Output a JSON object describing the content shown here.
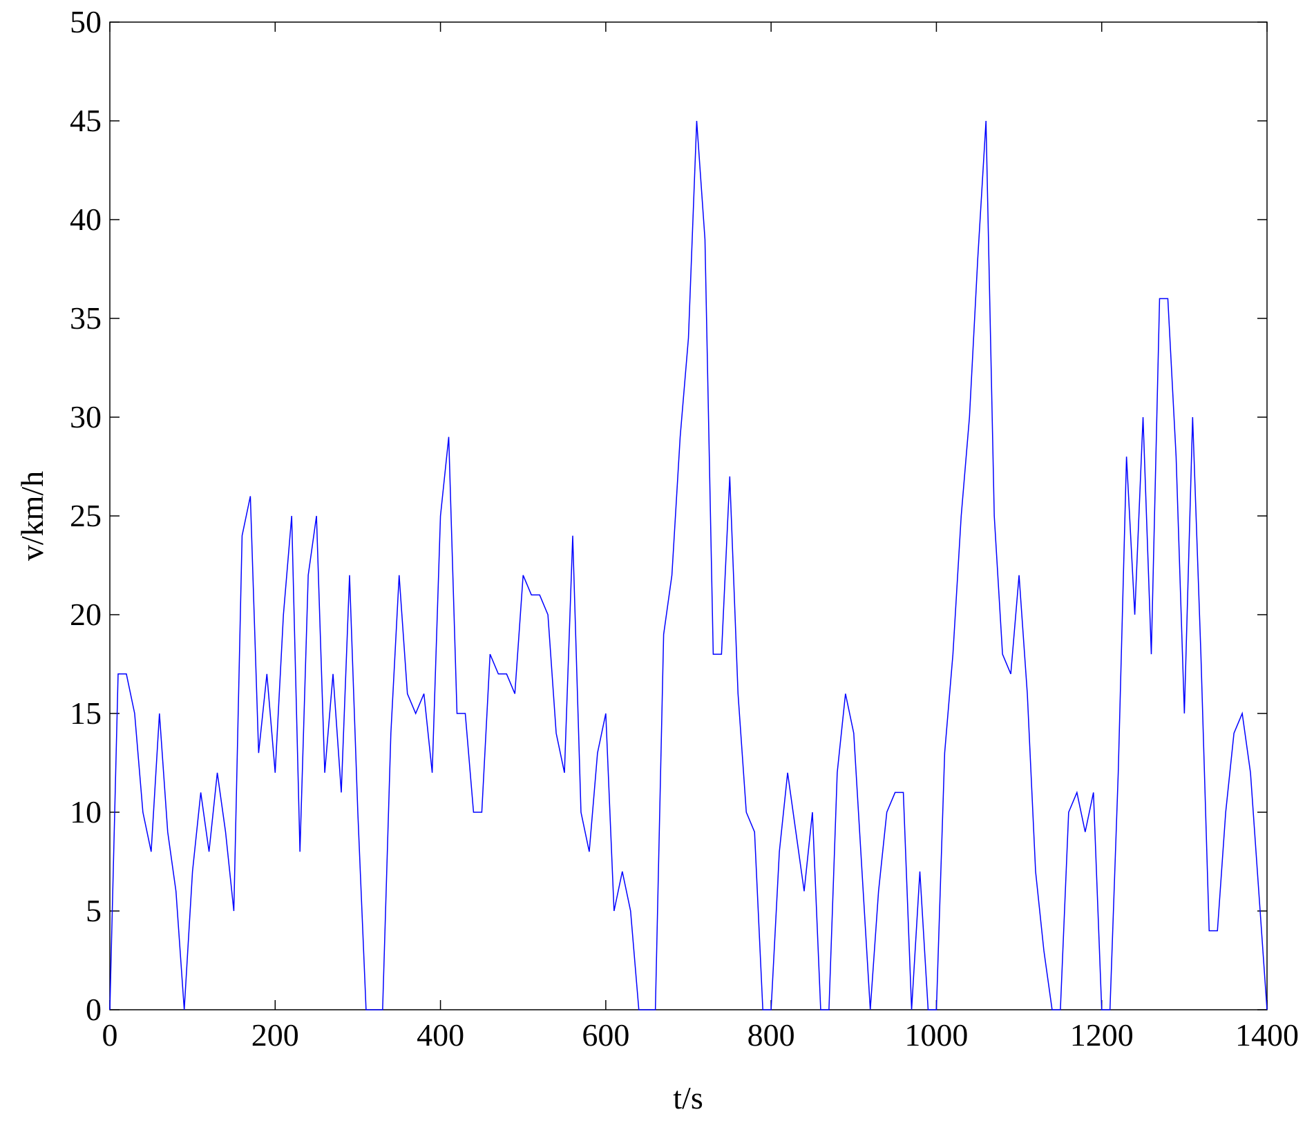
{
  "chart_data": {
    "type": "line",
    "xlabel": "t/s",
    "ylabel": "v/km/h",
    "x": [
      0,
      10,
      20,
      30,
      40,
      50,
      60,
      70,
      80,
      90,
      100,
      110,
      120,
      130,
      140,
      150,
      160,
      170,
      180,
      190,
      200,
      210,
      220,
      230,
      240,
      250,
      260,
      270,
      280,
      290,
      300,
      310,
      320,
      330,
      340,
      350,
      360,
      370,
      380,
      390,
      400,
      410,
      420,
      430,
      440,
      450,
      460,
      470,
      480,
      490,
      500,
      510,
      520,
      530,
      540,
      550,
      560,
      570,
      580,
      590,
      600,
      610,
      620,
      630,
      640,
      650,
      660,
      670,
      680,
      690,
      700,
      710,
      720,
      730,
      740,
      750,
      760,
      770,
      780,
      790,
      800,
      810,
      820,
      830,
      840,
      850,
      860,
      870,
      880,
      890,
      900,
      910,
      920,
      930,
      940,
      950,
      960,
      970,
      980,
      990,
      1000,
      1010,
      1020,
      1030,
      1040,
      1050,
      1060,
      1070,
      1080,
      1090,
      1100,
      1110,
      1120,
      1130,
      1140,
      1150,
      1160,
      1170,
      1180,
      1190,
      1200,
      1210,
      1220,
      1230,
      1240,
      1250,
      1260,
      1270,
      1280,
      1290,
      1300,
      1310,
      1320,
      1330,
      1340,
      1350,
      1360,
      1370,
      1380,
      1390,
      1400
    ],
    "series": [
      {
        "color": "#0000ff",
        "values": [
          0,
          17,
          17,
          15,
          10,
          8,
          15,
          9,
          6,
          0,
          7,
          11,
          8,
          12,
          9,
          5,
          24,
          26,
          13,
          17,
          12,
          20,
          25,
          8,
          22,
          25,
          12,
          17,
          11,
          22,
          10,
          0,
          0,
          0,
          14,
          22,
          16,
          15,
          16,
          12,
          25,
          29,
          15,
          15,
          10,
          10,
          18,
          17,
          17,
          16,
          22,
          21,
          21,
          20,
          14,
          12,
          24,
          10,
          8,
          13,
          15,
          5,
          7,
          5,
          0,
          0,
          0,
          19,
          22,
          29,
          34,
          45,
          39,
          18,
          18,
          27,
          16,
          10,
          9,
          0,
          0,
          8,
          12,
          9,
          6,
          10,
          0,
          0,
          12,
          16,
          14,
          7,
          0,
          6,
          10,
          11,
          11,
          0,
          7,
          0,
          0,
          13,
          18,
          25,
          30,
          38,
          45,
          25,
          18,
          17,
          22,
          16,
          7,
          3,
          0,
          0,
          10,
          11,
          9,
          11,
          0,
          0,
          12,
          28,
          20,
          30,
          18,
          36,
          36,
          28,
          15,
          30,
          18,
          4,
          4,
          10,
          14,
          15,
          12,
          6,
          0
        ]
      }
    ],
    "xlim": [
      0,
      1400
    ],
    "xticks": [
      0,
      200,
      400,
      600,
      800,
      1000,
      1200,
      1400
    ],
    "ylim": [
      0,
      50
    ],
    "yticks": [
      0,
      5,
      10,
      15,
      20,
      25,
      30,
      35,
      40,
      45,
      50
    ]
  }
}
